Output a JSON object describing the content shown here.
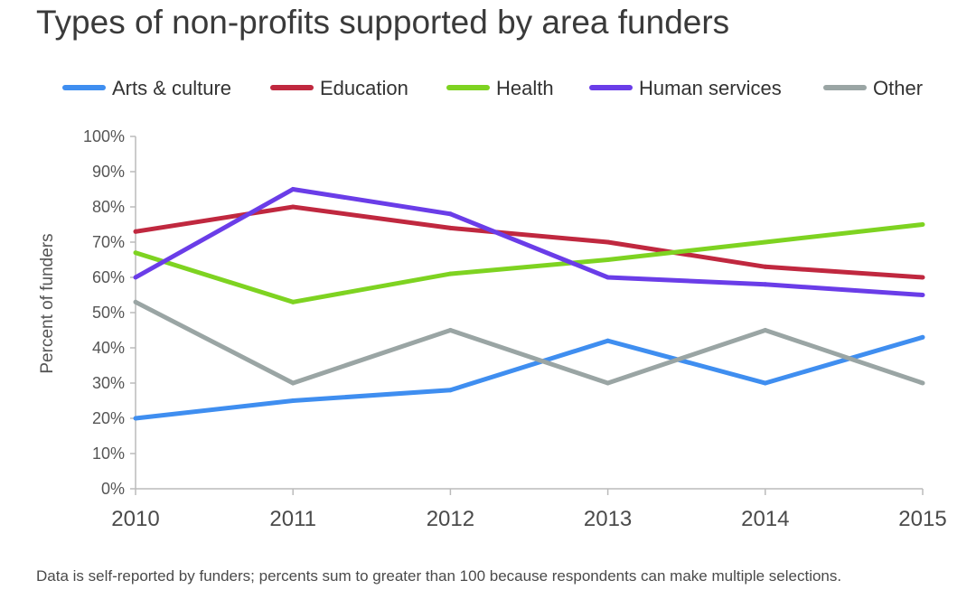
{
  "chart_data": {
    "type": "line",
    "title": "Types of non-profits supported by area funders",
    "xlabel": "",
    "ylabel": "Percent of funders",
    "x": [
      "2010",
      "2011",
      "2012",
      "2013",
      "2014",
      "2015"
    ],
    "ylim": [
      0,
      100
    ],
    "yticks": [
      "0%",
      "10%",
      "20%",
      "30%",
      "40%",
      "50%",
      "60%",
      "70%",
      "80%",
      "90%",
      "100%"
    ],
    "legend_position": "top",
    "series": [
      {
        "name": "Arts & culture",
        "color": "#3f8ef0",
        "values": [
          20,
          25,
          28,
          42,
          30,
          43
        ]
      },
      {
        "name": "Education",
        "color": "#c0283f",
        "values": [
          73,
          80,
          74,
          70,
          63,
          60
        ]
      },
      {
        "name": "Health",
        "color": "#7ed321",
        "values": [
          67,
          53,
          61,
          65,
          70,
          75
        ]
      },
      {
        "name": "Human services",
        "color": "#6a3de8",
        "values": [
          60,
          85,
          78,
          60,
          58,
          55
        ]
      },
      {
        "name": "Other",
        "color": "#9aa5a4",
        "values": [
          53,
          30,
          45,
          30,
          45,
          30
        ]
      }
    ],
    "footnote": "Data is self-reported by funders; percents sum to greater than 100 because respondents can make multiple selections."
  }
}
